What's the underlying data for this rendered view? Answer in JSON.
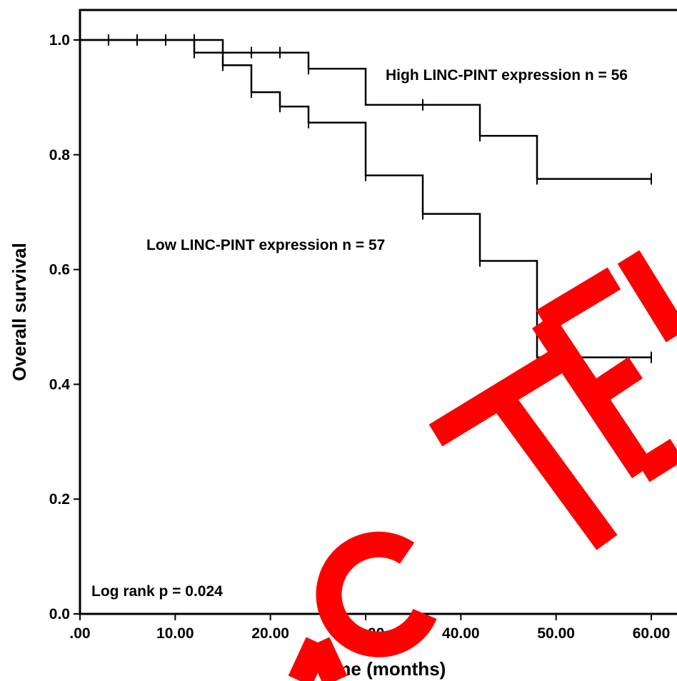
{
  "chart_data": {
    "type": "line",
    "subtype": "kaplan-meier",
    "xlabel": "Time (months)",
    "ylabel": "Overall survival",
    "xlim": [
      0,
      60
    ],
    "ylim": [
      0,
      1.0
    ],
    "x_ticks": [
      ".00",
      "10.00",
      "20.00",
      "30.00",
      "40.00",
      "50.00",
      "60.00"
    ],
    "y_ticks": [
      "0.0",
      "0.2",
      "0.4",
      "0.6",
      "0.8",
      "1.0"
    ],
    "grid": false,
    "series": [
      {
        "name": "High LINC-PINT expression n = 56",
        "steps": [
          [
            0,
            1.0
          ],
          [
            15,
            0.978
          ],
          [
            24,
            0.95
          ],
          [
            30,
            0.887
          ],
          [
            42,
            0.833
          ],
          [
            48,
            0.758
          ],
          [
            60,
            0.758
          ]
        ],
        "censored": [
          [
            3,
            1.0
          ],
          [
            6,
            1.0
          ],
          [
            9,
            1.0
          ],
          [
            12,
            1.0
          ],
          [
            18,
            0.978
          ],
          [
            21,
            0.978
          ],
          [
            24,
            0.95
          ],
          [
            36,
            0.887
          ],
          [
            42,
            0.833
          ],
          [
            48,
            0.758
          ],
          [
            60,
            0.758
          ]
        ]
      },
      {
        "name": "Low LINC-PINT expression n = 57",
        "steps": [
          [
            0,
            1.0
          ],
          [
            12,
            0.978
          ],
          [
            15,
            0.956
          ],
          [
            18,
            0.909
          ],
          [
            21,
            0.884
          ],
          [
            24,
            0.856
          ],
          [
            30,
            0.764
          ],
          [
            36,
            0.697
          ],
          [
            42,
            0.615
          ],
          [
            48,
            0.447
          ],
          [
            60,
            0.447
          ]
        ],
        "censored": [
          [
            12,
            0.978
          ],
          [
            15,
            0.956
          ],
          [
            18,
            0.909
          ],
          [
            21,
            0.884
          ],
          [
            24,
            0.856
          ],
          [
            30,
            0.764
          ],
          [
            36,
            0.697
          ],
          [
            42,
            0.615
          ],
          [
            60,
            0.447
          ]
        ]
      }
    ],
    "annotations": {
      "high_label": "High LINC-PINT expression n = 56",
      "low_label": "Low LINC-PINT expression n = 57",
      "pvalue": "Log rank p = 0.024"
    },
    "watermark": "REDACTED",
    "watermark_color": "#ff0000"
  }
}
